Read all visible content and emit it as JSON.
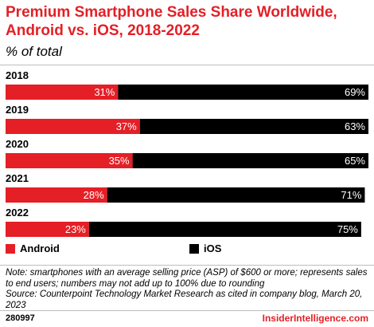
{
  "header": {
    "title": "Premium Smartphone Sales Share Worldwide, Android vs. iOS, 2018-2022",
    "subtitle": "% of total"
  },
  "legend": [
    {
      "name": "Android",
      "color": "#e41f26"
    },
    {
      "name": "iOS",
      "color": "#000000"
    }
  ],
  "chart_data": {
    "type": "bar",
    "orientation": "horizontal",
    "stacked": true,
    "categories": [
      "2018",
      "2019",
      "2020",
      "2021",
      "2022"
    ],
    "series": [
      {
        "name": "Android",
        "color": "#e41f26",
        "values": [
          31,
          37,
          35,
          28,
          23
        ],
        "labels": [
          "31%",
          "37%",
          "35%",
          "28%",
          "23%"
        ]
      },
      {
        "name": "iOS",
        "color": "#000000",
        "values": [
          69,
          63,
          65,
          71,
          75
        ],
        "labels": [
          "69%",
          "63%",
          "65%",
          "71%",
          "75%"
        ]
      }
    ],
    "xlim": [
      0,
      100
    ],
    "grid": false,
    "legend_position": "bottom"
  },
  "notes": {
    "note": "Note: smartphones with an average selling price (ASP) of $600 or more; represents sales to end users; numbers may not add up to 100% due to rounding",
    "source": "Source: Counterpoint Technology Market Research as cited in company blog, March 20, 2023"
  },
  "footer": {
    "chart_id": "280997",
    "brand": "InsiderIntelligence.com"
  }
}
